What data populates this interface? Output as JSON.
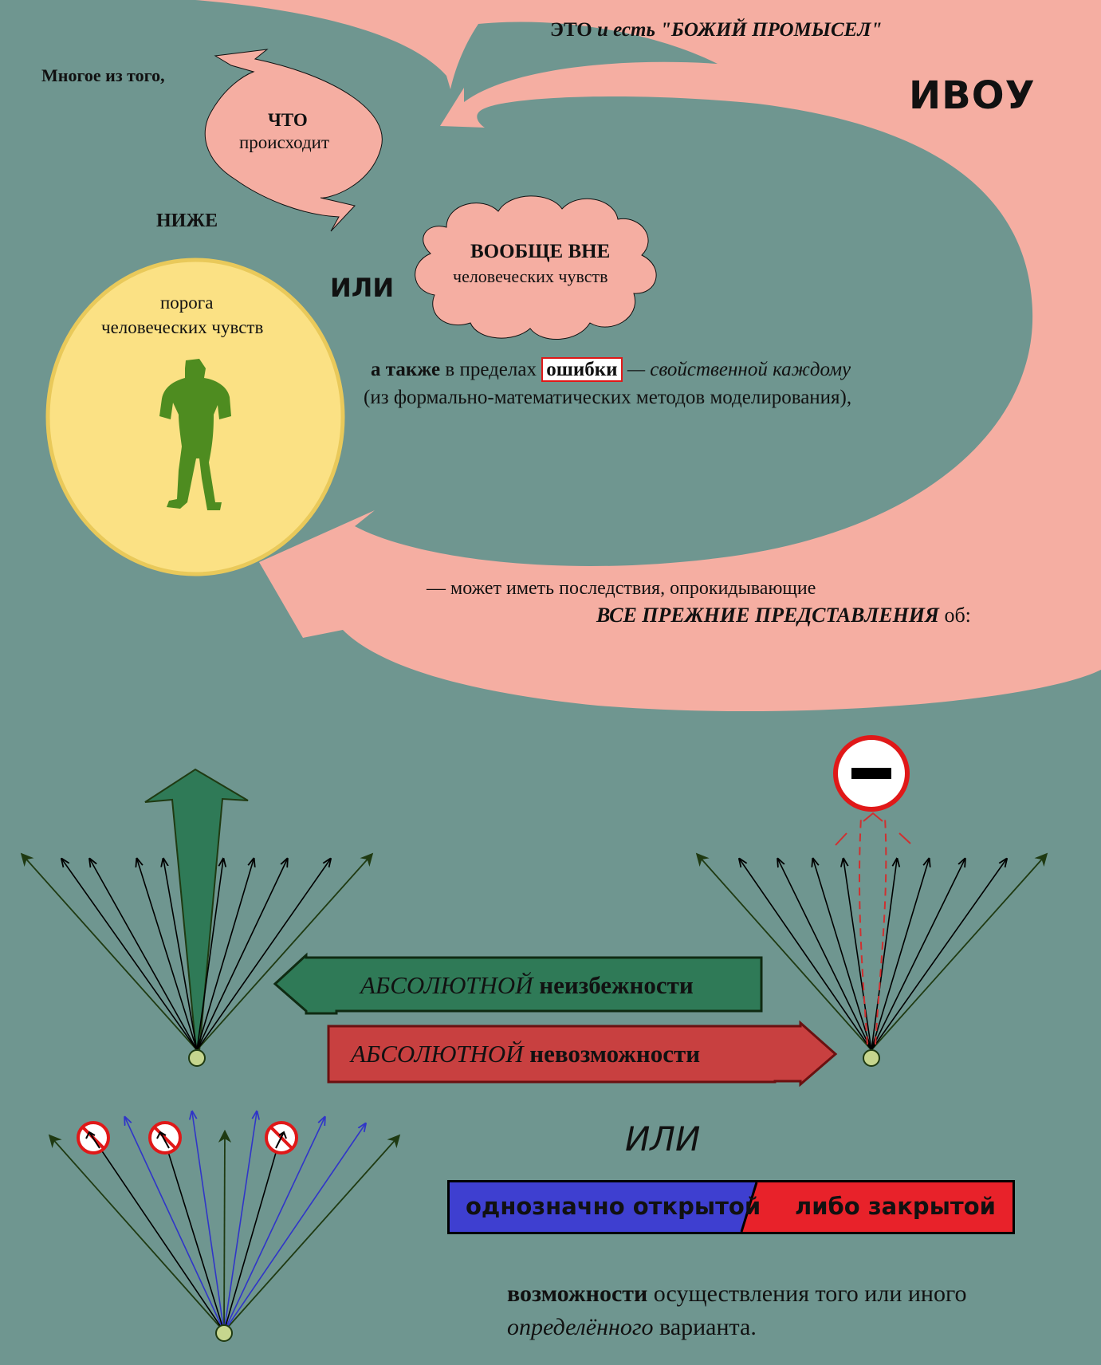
{
  "colors": {
    "background": "#6f9690",
    "pink": "#f5aea2",
    "yellow_circle": "#fbe184",
    "figure_green": "#4e8c20",
    "dark_green_arrow": "#2f7a57",
    "red_arrow": "#c84040",
    "blue": "#3e3fd0",
    "red": "#e8222a"
  },
  "top": {
    "providence": "ЭТО и есть \"БОЖИЙ ПРОМЫСЕЛ\"",
    "providence_parts": [
      "ЭТО ",
      "и есть",
      " \"БОЖИЙ ПРОМЫСЕЛ\""
    ],
    "ivou": "ИВОУ",
    "much_of": "Многое из того,",
    "what": "ЧТО",
    "happens": "происходит",
    "below": "НИЖЕ",
    "or": "ИЛИ",
    "threshold": "порога",
    "human_senses": "человеческих чувств",
    "beyond": "ВООБЩЕ ВНЕ",
    "beyond_senses": "человеческих чувств",
    "also_bold": "а также",
    "also_within": " в пределах ",
    "error": "ошибки",
    "inherent": " — свойственной каждому",
    "methods": "(из формально-математических методов моделирования),",
    "may_have": "—  может иметь последствия, опрокидывающие",
    "all_former": "ВСЕ ПРЕЖНИЕ ПРЕДСТАВЛЕНИЯ",
    "about": " об:"
  },
  "middle": {
    "abs_italic_1": "АБСОЛЮТНОЙ",
    "inevitability": " неизбежности",
    "abs_italic_2": "АБСОЛЮТНОЙ",
    "impossibility": " невозможности"
  },
  "bottom": {
    "or_italic": "ИЛИ",
    "open": "однозначно открытой",
    "closed": "либо закрытой",
    "possibility": "возможности",
    "realization": " осуществления того или иного",
    "definite": "определённого",
    "variant": " варианта."
  },
  "icons": {
    "person": "person-silhouette-icon",
    "minus_sign": "no-entry-sign-icon",
    "prohibited": "prohibited-direction-icon"
  }
}
